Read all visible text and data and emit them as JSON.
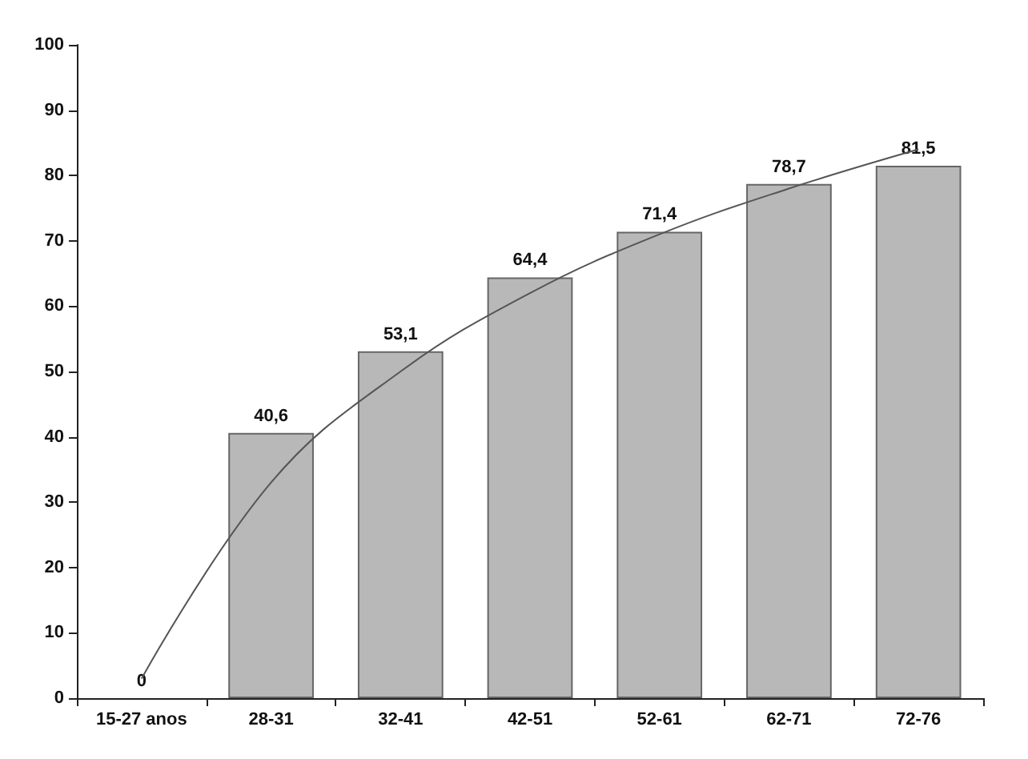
{
  "chart_data": {
    "type": "bar",
    "categories": [
      "15-27 anos",
      "28-31",
      "32-41",
      "42-51",
      "52-61",
      "62-71",
      "72-76"
    ],
    "series": [
      {
        "color": "#b8b8b8",
        "values": [
          0,
          40.6,
          53.1,
          64.4,
          71.4,
          78.7,
          81.5
        ],
        "value_labels": [
          "0",
          "40,6",
          "53,1",
          "64,4",
          "71,4",
          "78,7",
          "81,5"
        ]
      },
      {
        "type": "line",
        "color": "#555555",
        "x": [
          "15-27 anos",
          "28-31",
          "32-41",
          "42-51",
          "52-61",
          "62-71",
          "72-76"
        ],
        "values": [
          3,
          33,
          50,
          62,
          71,
          78,
          84
        ],
        "marker": "none",
        "line_style": "solid"
      }
    ],
    "ylim": [
      0,
      100
    ],
    "yticks": [
      0,
      10,
      20,
      30,
      40,
      50,
      60,
      70,
      80,
      90,
      100
    ],
    "grid": false
  }
}
